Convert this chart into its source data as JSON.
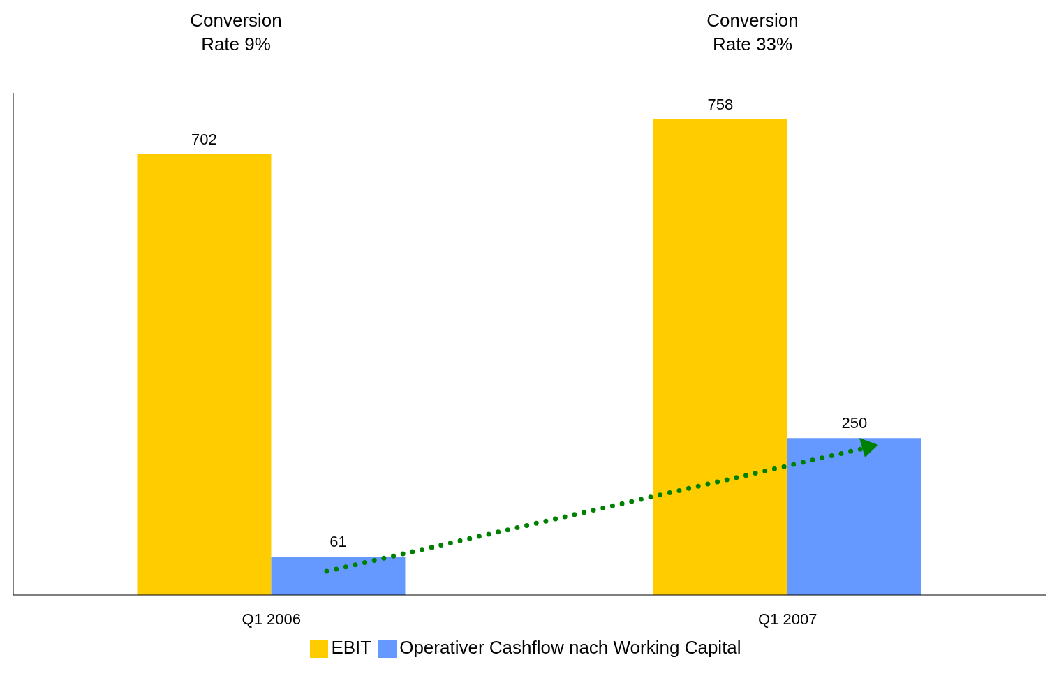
{
  "chart_data": {
    "type": "bar",
    "categories": [
      "Q1 2006",
      "Q1 2007"
    ],
    "series": [
      {
        "name": "EBIT",
        "color": "#ffcc00",
        "values": [
          702,
          758
        ]
      },
      {
        "name": "Operativer Cashflow nach Working Capital",
        "color": "#6699ff",
        "values": [
          61,
          250
        ]
      }
    ],
    "data_labels": true,
    "legend": "bottom",
    "annotations": [
      "Conversion Rate 9%",
      "Conversion Rate 33%"
    ]
  }
}
